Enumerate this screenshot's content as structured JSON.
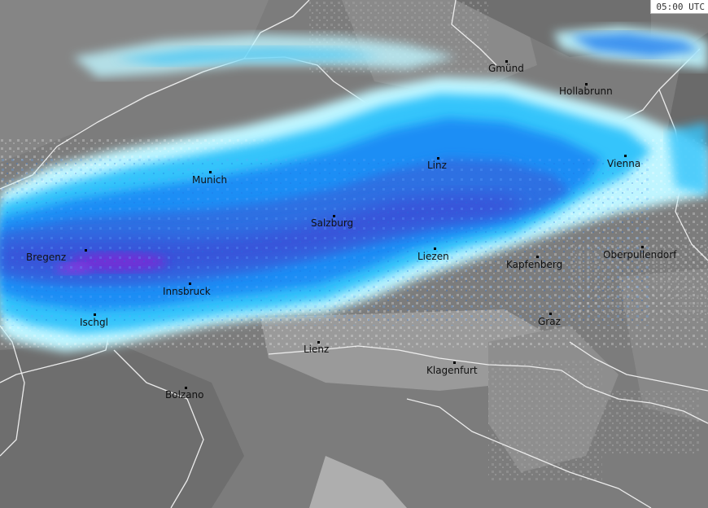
{
  "map": {
    "timestamp": "05:00 UTC",
    "colors": {
      "ground_dark": "#6e6e6e",
      "ground_light": "#8f8f8f",
      "alps_shade": "#a3a3a3",
      "border_line": "#e8e8e8",
      "precip_light": "#bff5ff",
      "precip_cyan": "#33ccff",
      "precip_blue": "#1e90ff",
      "precip_mid": "#2f72e6",
      "precip_deep": "#3a4cd8",
      "precip_violet": "#7a2bd6"
    },
    "cities": [
      {
        "id": "gmund",
        "name": "Gmünd"
      },
      {
        "id": "hollabrunn",
        "name": "Hollabrunn"
      },
      {
        "id": "munich",
        "name": "Munich"
      },
      {
        "id": "linz",
        "name": "Linz"
      },
      {
        "id": "vienna",
        "name": "Vienna"
      },
      {
        "id": "salzburg",
        "name": "Salzburg"
      },
      {
        "id": "bregenz",
        "name": "Bregenz"
      },
      {
        "id": "liezen",
        "name": "Liezen"
      },
      {
        "id": "kapfenberg",
        "name": "Kapfenberg"
      },
      {
        "id": "oberpullendorf",
        "name": "Oberpullendorf"
      },
      {
        "id": "innsbruck",
        "name": "Innsbruck"
      },
      {
        "id": "ischgl",
        "name": "Ischgl"
      },
      {
        "id": "graz",
        "name": "Graz"
      },
      {
        "id": "lienz",
        "name": "Lienz"
      },
      {
        "id": "klagenfurt",
        "name": "Klagenfurt"
      },
      {
        "id": "bolzano",
        "name": "Bolzano"
      }
    ]
  }
}
